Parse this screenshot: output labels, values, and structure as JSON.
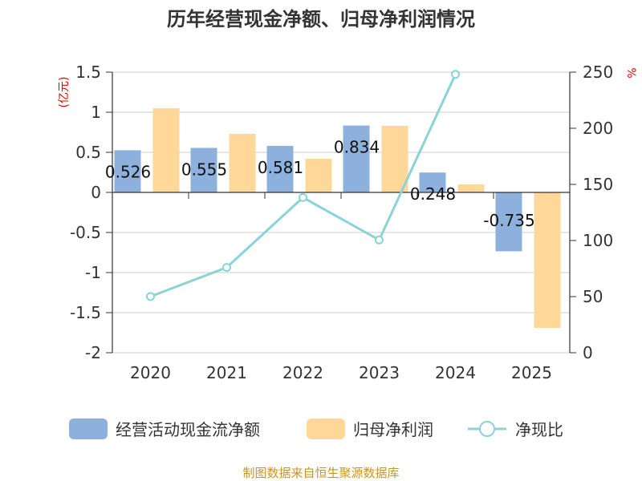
{
  "chart_data": {
    "type": "bar",
    "title": "历年经营现金净额、归母净利润情况",
    "categories": [
      "2020",
      "2021",
      "2022",
      "2023",
      "2024",
      "2025"
    ],
    "series": [
      {
        "name": "经营活动现金流净额",
        "type": "bar",
        "axis": "left",
        "color": "#8eb0dc",
        "values": [
          0.526,
          0.555,
          0.581,
          0.834,
          0.248,
          -0.735
        ],
        "labels": [
          "0.526",
          "0.555",
          "0.581",
          "0.834",
          "0.248",
          "-0.735"
        ]
      },
      {
        "name": "归母净利润",
        "type": "bar",
        "axis": "left",
        "color": "#ffd899",
        "values": [
          1.05,
          0.73,
          0.42,
          0.83,
          0.1,
          -1.69
        ]
      },
      {
        "name": "净现比",
        "type": "line",
        "axis": "right",
        "color": "#8ad3d7",
        "values": [
          50.1,
          76.0,
          138.3,
          100.5,
          248.0,
          null
        ]
      }
    ],
    "left_axis": {
      "unit": "(亿元)",
      "ylim": [
        -2,
        1.5
      ],
      "ticks": [
        -2,
        -1.5,
        -1,
        -0.5,
        0,
        0.5,
        1,
        1.5
      ],
      "tick_labels": [
        "-2",
        "-1.5",
        "-1",
        "-0.5",
        "0",
        "0.5",
        "1",
        "1.5"
      ]
    },
    "right_axis": {
      "unit": "%",
      "ylim": [
        0,
        250
      ],
      "ticks": [
        0,
        50,
        100,
        150,
        200,
        250
      ],
      "tick_labels": [
        "0",
        "50",
        "100",
        "150",
        "200",
        "250"
      ]
    },
    "legend_position": "bottom",
    "grid": true
  },
  "footer": {
    "source": "制图数据来自恒生聚源数据库"
  }
}
